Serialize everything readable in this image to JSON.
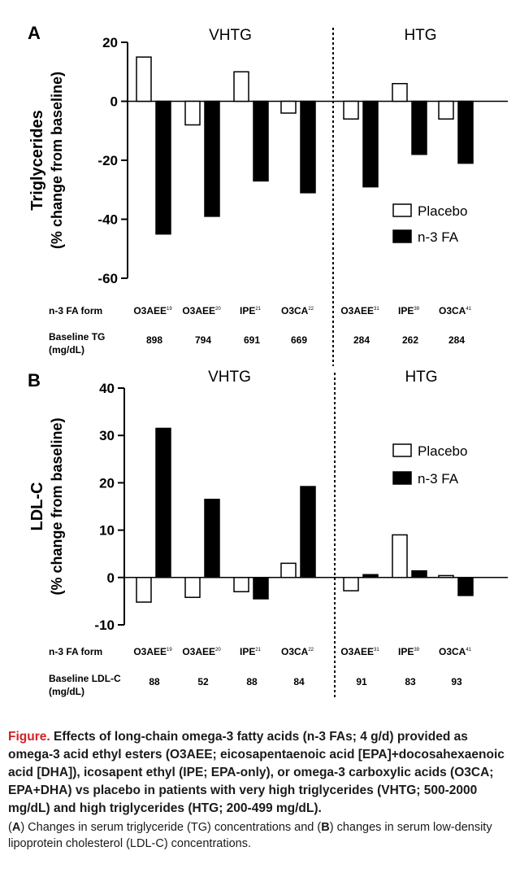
{
  "chart_data": [
    {
      "type": "bar",
      "panel_label": "A",
      "ylabel_line1": "Triglycerides",
      "ylabel_line2": "(% change from baseline)",
      "ylim": [
        -60,
        20
      ],
      "yticks": [
        20,
        0,
        -20,
        -40,
        -60
      ],
      "group_labels": [
        "VHTG",
        "HTG"
      ],
      "categories": [
        "O3AEE",
        "O3AEE",
        "IPE",
        "O3CA",
        "O3AEE",
        "IPE",
        "O3CA"
      ],
      "category_refs": [
        "19",
        "20",
        "21",
        "22",
        "31",
        "39",
        "41"
      ],
      "series": [
        {
          "name": "Placebo",
          "color": "#ffffff",
          "values": [
            15,
            -8,
            10,
            -4,
            -6,
            6,
            -6
          ]
        },
        {
          "name": "n-3 FA",
          "color": "#000000",
          "values": [
            -45,
            -39,
            -27,
            -31,
            -29,
            -18,
            -21
          ]
        }
      ],
      "form_row_label": "n-3 FA form",
      "baseline_label_line1": "Baseline TG",
      "baseline_label_line2": "(mg/dL)",
      "baseline_values": [
        "898",
        "794",
        "691",
        "669",
        "284",
        "262",
        "284"
      ],
      "legend_position": "right"
    },
    {
      "type": "bar",
      "panel_label": "B",
      "ylabel_line1": "LDL-C",
      "ylabel_line2": "(% change from baseline)",
      "ylim": [
        -10,
        40
      ],
      "yticks": [
        40,
        30,
        20,
        10,
        0,
        -10
      ],
      "group_labels": [
        "VHTG",
        "HTG"
      ],
      "categories": [
        "O3AEE",
        "O3AEE",
        "IPE",
        "O3CA",
        "O3AEE",
        "IPE",
        "O3CA"
      ],
      "category_refs": [
        "19",
        "20",
        "21",
        "22",
        "31",
        "39",
        "41"
      ],
      "series": [
        {
          "name": "Placebo",
          "color": "#ffffff",
          "values": [
            -5.2,
            -4.2,
            -3,
            3,
            -2.8,
            9,
            0.4
          ]
        },
        {
          "name": "n-3 FA",
          "color": "#000000",
          "values": [
            31.5,
            16.5,
            -4.5,
            19.2,
            0.6,
            1.4,
            -3.8
          ]
        }
      ],
      "form_row_label": "n-3 FA form",
      "baseline_label_line1": "Baseline LDL-C",
      "baseline_label_line2": "(mg/dL)",
      "baseline_values": [
        "88",
        "52",
        "88",
        "84",
        "91",
        "83",
        "93"
      ],
      "legend_position": "right"
    }
  ],
  "caption": {
    "figure_word": "Figure.",
    "title": " Effects of long-chain omega-3 fatty acids (n-3 FAs; 4 g/d) provided as omega-3 acid ethyl esters (O3AEE; eicosapentaenoic acid [EPA]+docosahexaenoic acid [DHA]), icosapent ethyl (IPE; EPA-only), or omega-3 carboxylic acids (O3CA; EPA+DHA) vs placebo in patients with very high triglycerides (VHTG; 500-2000 mg/dL) and high triglycerides (HTG; 200-499 mg/dL).",
    "sub_a_open": "(",
    "sub_a_letter": "A",
    "sub_a_text": ") Changes in serum triglyceride (TG) concentrations and (",
    "sub_b_letter": "B",
    "sub_b_text": ") changes in serum low-density lipoprotein cholesterol (LDL-C) concentrations."
  }
}
